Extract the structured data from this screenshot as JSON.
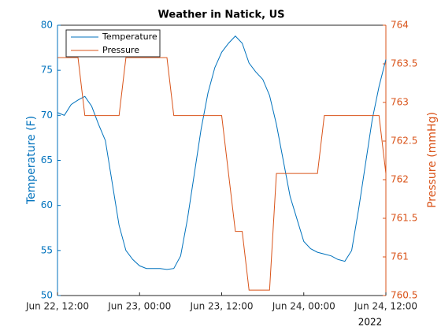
{
  "chart_data": {
    "type": "line",
    "title": "Weather in Natick, US",
    "ylabel": "Temperature (F)",
    "y2label": "Pressure (mmHg)",
    "x_secondary_label": "2022",
    "x": [
      "2022-06-22T12:00",
      "2022-06-22T13:00",
      "2022-06-22T14:00",
      "2022-06-22T15:00",
      "2022-06-22T16:00",
      "2022-06-22T17:00",
      "2022-06-22T18:00",
      "2022-06-22T19:00",
      "2022-06-22T20:00",
      "2022-06-22T21:00",
      "2022-06-22T22:00",
      "2022-06-22T23:00",
      "2022-06-23T00:00",
      "2022-06-23T01:00",
      "2022-06-23T02:00",
      "2022-06-23T03:00",
      "2022-06-23T04:00",
      "2022-06-23T05:00",
      "2022-06-23T06:00",
      "2022-06-23T07:00",
      "2022-06-23T08:00",
      "2022-06-23T09:00",
      "2022-06-23T10:00",
      "2022-06-23T11:00",
      "2022-06-23T12:00",
      "2022-06-23T13:00",
      "2022-06-23T14:00",
      "2022-06-23T15:00",
      "2022-06-23T16:00",
      "2022-06-23T17:00",
      "2022-06-23T18:00",
      "2022-06-23T19:00",
      "2022-06-23T20:00",
      "2022-06-23T21:00",
      "2022-06-23T22:00",
      "2022-06-23T23:00",
      "2022-06-24T00:00",
      "2022-06-24T01:00",
      "2022-06-24T02:00",
      "2022-06-24T03:00",
      "2022-06-24T04:00",
      "2022-06-24T05:00",
      "2022-06-24T06:00",
      "2022-06-24T07:00",
      "2022-06-24T08:00",
      "2022-06-24T09:00",
      "2022-06-24T10:00",
      "2022-06-24T11:00",
      "2022-06-24T12:00"
    ],
    "series": [
      {
        "name": "Temperature",
        "color": "#0072bd",
        "axis": "y",
        "values": [
          70.3,
          70.0,
          71.2,
          71.7,
          72.1,
          71.0,
          69.0,
          67.2,
          62.5,
          57.8,
          55.0,
          54.0,
          53.3,
          53.0,
          53.0,
          53.0,
          52.9,
          53.0,
          54.4,
          58.5,
          63.5,
          68.5,
          72.5,
          75.3,
          77.0,
          78.0,
          78.8,
          78.0,
          75.8,
          74.8,
          74.0,
          72.2,
          69.0,
          65.0,
          61.0,
          58.5,
          56.0,
          55.2,
          54.8,
          54.6,
          54.4,
          54.0,
          53.8,
          55.0,
          59.5,
          64.5,
          69.5,
          73.2,
          76.2
        ]
      },
      {
        "name": "Pressure",
        "color": "#d95319",
        "axis": "y2",
        "values": [
          763.58,
          763.58,
          763.58,
          763.58,
          762.83,
          762.83,
          762.83,
          762.83,
          762.83,
          762.83,
          763.58,
          763.58,
          763.58,
          763.58,
          763.58,
          763.58,
          763.58,
          762.83,
          762.83,
          762.83,
          762.83,
          762.83,
          762.83,
          762.83,
          762.83,
          762.08,
          761.33,
          761.33,
          760.57,
          760.57,
          760.57,
          760.57,
          762.08,
          762.08,
          762.08,
          762.08,
          762.08,
          762.08,
          762.08,
          762.83,
          762.83,
          762.83,
          762.83,
          762.83,
          762.83,
          762.83,
          762.83,
          762.83,
          762.08
        ]
      }
    ],
    "xlim": [
      "2022-06-22T12:00",
      "2022-06-24T12:00"
    ],
    "xticks": [
      {
        "value": "2022-06-22T12:00",
        "label": "Jun 22, 12:00"
      },
      {
        "value": "2022-06-23T00:00",
        "label": "Jun 23, 00:00"
      },
      {
        "value": "2022-06-23T12:00",
        "label": "Jun 23, 12:00"
      },
      {
        "value": "2022-06-24T00:00",
        "label": "Jun 24, 00:00"
      },
      {
        "value": "2022-06-24T12:00",
        "label": "Jun 24, 12:00"
      }
    ],
    "ylim": [
      50,
      80
    ],
    "yticks": [
      50,
      55,
      60,
      65,
      70,
      75,
      80
    ],
    "y2lim": [
      760.5,
      764
    ],
    "y2ticks": [
      760.5,
      761,
      761.5,
      762,
      762.5,
      763,
      763.5,
      764
    ],
    "legend": "upper left",
    "grid": false
  }
}
